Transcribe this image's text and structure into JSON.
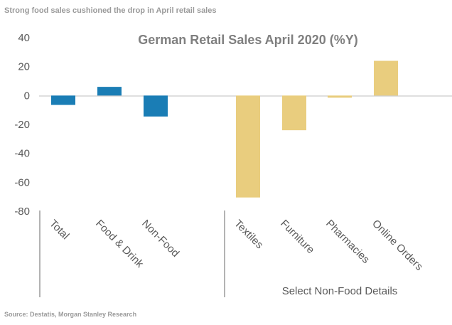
{
  "headline": "Strong food sales cushioned the drop in April retail sales",
  "source": "Source: Destatis, Morgan Stanley Research",
  "chart_data": {
    "type": "bar",
    "title": "German Retail Sales April 2020 (%Y)",
    "xlabel": "",
    "ylabel": "",
    "ylim": [
      -80,
      40
    ],
    "yticks": [
      40,
      20,
      0,
      -20,
      -40,
      -60,
      -80
    ],
    "grid": false,
    "categories": [
      "Total",
      "Food & Drink",
      "Non-Food",
      "Textiles",
      "Furniture",
      "Pharmacies",
      "Online Orders"
    ],
    "values": [
      -6.5,
      6,
      -14.5,
      -70.5,
      -24,
      -1.5,
      24
    ],
    "bar_colors": [
      "#1a7db5",
      "#1a7db5",
      "#1a7db5",
      "#e9cd7e",
      "#e9cd7e",
      "#e9cd7e",
      "#e9cd7e"
    ],
    "group_label": "Select Non-Food Details"
  }
}
